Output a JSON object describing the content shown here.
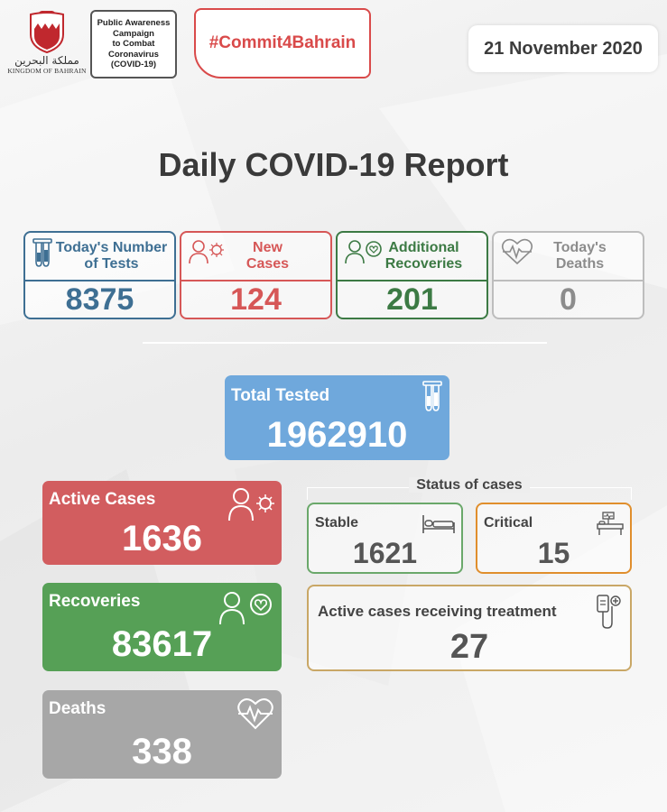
{
  "header": {
    "crest_arabic": "مملكة البحرين",
    "crest_english": "KINGDOM OF BAHRAIN",
    "awareness_lines": [
      "Public Awareness",
      "Campaign",
      "to Combat",
      "Coronavirus",
      "(COVID-19)"
    ],
    "hashtag": "#Commit4Bahrain",
    "date": "21 November 2020"
  },
  "title": "Daily COVID-19 Report",
  "daily": {
    "tests": {
      "label_lines": [
        "Today's Number",
        "of Tests"
      ],
      "value": "8375",
      "color": "#3e6f93",
      "icon": "test-tubes-icon"
    },
    "new_cases": {
      "label_lines": [
        "New",
        "Cases"
      ],
      "value": "124",
      "color": "#d65757",
      "icon": "person-virus-icon"
    },
    "recoveries": {
      "label_lines": [
        "Additional",
        "Recoveries"
      ],
      "value": "201",
      "color": "#3c7a44",
      "icon": "person-heart-icon"
    },
    "deaths": {
      "label_lines": [
        "Today's",
        "Deaths"
      ],
      "value": "0",
      "color": "#8c8c8c",
      "icon": "heartbeat-icon"
    }
  },
  "total_tested": {
    "label": "Total Tested",
    "value": "1962910",
    "color": "#6fa8dc",
    "icon": "test-tubes-icon"
  },
  "active_cases": {
    "label": "Active Cases",
    "value": "1636",
    "color": "#d25d5f",
    "icon": "person-virus-icon"
  },
  "recoveries_total": {
    "label": "Recoveries",
    "value": "83617",
    "color": "#56a056",
    "icon": "person-heart-icon"
  },
  "deaths_total": {
    "label": "Deaths",
    "value": "338",
    "color": "#a7a7a7",
    "icon": "heartbeat-icon"
  },
  "status": {
    "title": "Status of cases",
    "stable": {
      "label": "Stable",
      "value": "1621",
      "color": "#6aa86a",
      "icon": "bed-icon"
    },
    "critical": {
      "label": "Critical",
      "value": "15",
      "color": "#e08e2c",
      "icon": "hospital-bed-icon"
    },
    "treatment": {
      "label": "Active cases receiving treatment",
      "value": "27",
      "color": "#c9a766",
      "icon": "iv-drip-icon"
    }
  }
}
